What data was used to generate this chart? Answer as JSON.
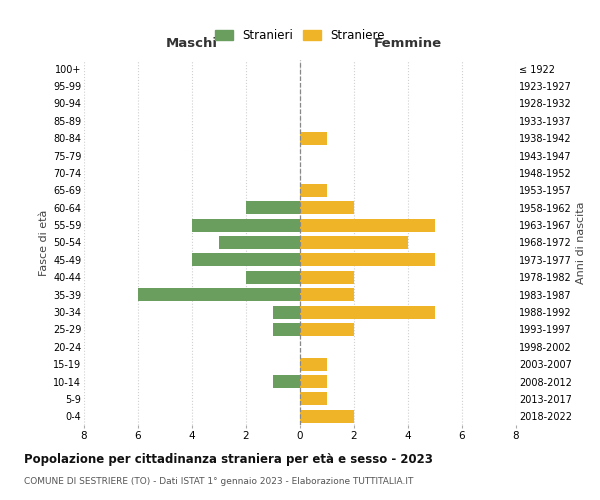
{
  "age_groups": [
    "0-4",
    "5-9",
    "10-14",
    "15-19",
    "20-24",
    "25-29",
    "30-34",
    "35-39",
    "40-44",
    "45-49",
    "50-54",
    "55-59",
    "60-64",
    "65-69",
    "70-74",
    "75-79",
    "80-84",
    "85-89",
    "90-94",
    "95-99",
    "100+"
  ],
  "birth_years": [
    "2018-2022",
    "2013-2017",
    "2008-2012",
    "2003-2007",
    "1998-2002",
    "1993-1997",
    "1988-1992",
    "1983-1987",
    "1978-1982",
    "1973-1977",
    "1968-1972",
    "1963-1967",
    "1958-1962",
    "1953-1957",
    "1948-1952",
    "1943-1947",
    "1938-1942",
    "1933-1937",
    "1928-1932",
    "1923-1927",
    "≤ 1922"
  ],
  "males": [
    0,
    0,
    1,
    0,
    0,
    1,
    1,
    6,
    2,
    4,
    3,
    4,
    2,
    0,
    0,
    0,
    0,
    0,
    0,
    0,
    0
  ],
  "females": [
    2,
    1,
    1,
    1,
    0,
    2,
    5,
    2,
    2,
    5,
    4,
    5,
    2,
    1,
    0,
    0,
    1,
    0,
    0,
    0,
    0
  ],
  "male_color": "#6a9e5e",
  "female_color": "#f0b429",
  "title_main": "Popolazione per cittadinanza straniera per età e sesso - 2023",
  "title_sub": "COMUNE DI SESTRIERE (TO) - Dati ISTAT 1° gennaio 2023 - Elaborazione TUTTITALIA.IT",
  "legend_male": "Stranieri",
  "legend_female": "Straniere",
  "label_maschi": "Maschi",
  "label_femmine": "Femmine",
  "label_fasce": "Fasce di età",
  "label_anni": "Anni di nascita",
  "xlim": 8,
  "background_color": "#ffffff",
  "grid_color": "#d0d0d0"
}
